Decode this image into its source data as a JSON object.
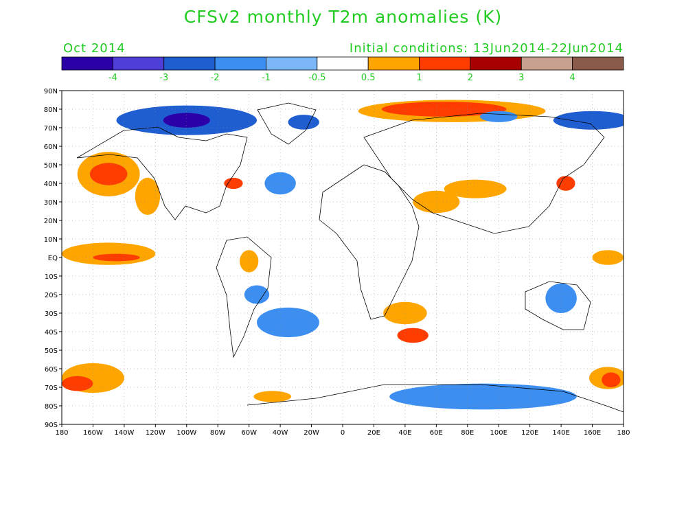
{
  "title": "CFSv2 monthly T2m anomalies (K)",
  "subtitle_left": "Oct 2014",
  "subtitle_right": "Initial conditions: 13Jun2014-22Jun2014",
  "text_color": "#22cc22",
  "colorbar": {
    "colors": [
      "#2b00a8",
      "#4f3fd8",
      "#1f5ed0",
      "#3c8ff0",
      "#7cb8f8",
      "#ffffff",
      "#ffa500",
      "#ff3c00",
      "#a80000",
      "#c8a090",
      "#8a5a4a"
    ],
    "labels": [
      "-4",
      "-3",
      "-2",
      "-1",
      "-0.5",
      "0.5",
      "1",
      "2",
      "3",
      "4"
    ]
  },
  "lat_ticks": [
    "90N",
    "80N",
    "70N",
    "60N",
    "50N",
    "40N",
    "30N",
    "20N",
    "10N",
    "EQ",
    "10S",
    "20S",
    "30S",
    "40S",
    "50S",
    "60S",
    "70S",
    "80S",
    "90S"
  ],
  "lon_ticks": [
    "180",
    "160W",
    "140W",
    "120W",
    "100W",
    "80W",
    "60W",
    "40W",
    "20W",
    "0",
    "20E",
    "40E",
    "60E",
    "80E",
    "100E",
    "120E",
    "140E",
    "160E",
    "180"
  ],
  "anomaly_regions": [
    {
      "name": "arctic-siberia-warm",
      "lon": 70,
      "lat": 79,
      "rx": 60,
      "ry": 6,
      "level": 1
    },
    {
      "name": "arctic-siberia-core",
      "lon": 65,
      "lat": 80,
      "rx": 40,
      "ry": 4,
      "level": 2
    },
    {
      "name": "canada-arctic-cold",
      "lon": -100,
      "lat": 74,
      "rx": 45,
      "ry": 8,
      "level": -2
    },
    {
      "name": "canada-arctic-core",
      "lon": -100,
      "lat": 74,
      "rx": 15,
      "ry": 4,
      "level": -4
    },
    {
      "name": "greenland-cold",
      "lon": -25,
      "lat": 73,
      "rx": 10,
      "ry": 4,
      "level": -2
    },
    {
      "name": "east-siberian-cold",
      "lon": 160,
      "lat": 74,
      "rx": 25,
      "ry": 5,
      "level": -2
    },
    {
      "name": "siberia-cold",
      "lon": 100,
      "lat": 76,
      "rx": 12,
      "ry": 3,
      "level": -1
    },
    {
      "name": "ne-pacific-warm",
      "lon": -150,
      "lat": 45,
      "rx": 20,
      "ry": 12,
      "level": 1
    },
    {
      "name": "ne-pacific-core",
      "lon": -150,
      "lat": 45,
      "rx": 12,
      "ry": 6,
      "level": 2
    },
    {
      "name": "california-warm",
      "lon": -125,
      "lat": 33,
      "rx": 8,
      "ry": 10,
      "level": 1
    },
    {
      "name": "eq-pacific-warm",
      "lon": -150,
      "lat": 2,
      "rx": 30,
      "ry": 6,
      "level": 1
    },
    {
      "name": "eq-pacific-core",
      "lon": -145,
      "lat": 0,
      "rx": 15,
      "ry": 2,
      "level": 2
    },
    {
      "name": "north-atlantic-cold",
      "lon": -40,
      "lat": 40,
      "rx": 10,
      "ry": 6,
      "level": -1
    },
    {
      "name": "us-east-warm",
      "lon": -70,
      "lat": 40,
      "rx": 6,
      "ry": 3,
      "level": 2
    },
    {
      "name": "south-america-warm",
      "lon": -60,
      "lat": -2,
      "rx": 6,
      "ry": 6,
      "level": 1
    },
    {
      "name": "south-atlantic-cold",
      "lon": -35,
      "lat": -35,
      "rx": 20,
      "ry": 8,
      "level": -1
    },
    {
      "name": "brazil-cold",
      "lon": -55,
      "lat": -20,
      "rx": 8,
      "ry": 5,
      "level": -1
    },
    {
      "name": "southern-africa-warm",
      "lon": 45,
      "lat": -42,
      "rx": 10,
      "ry": 4,
      "level": 2
    },
    {
      "name": "indian-ocean-warm",
      "lon": 40,
      "lat": -30,
      "rx": 14,
      "ry": 6,
      "level": 1
    },
    {
      "name": "middle-east-warm",
      "lon": 60,
      "lat": 30,
      "rx": 15,
      "ry": 6,
      "level": 1
    },
    {
      "name": "asia-warm",
      "lon": 85,
      "lat": 37,
      "rx": 20,
      "ry": 5,
      "level": 1
    },
    {
      "name": "japan-warm",
      "lon": 143,
      "lat": 40,
      "rx": 6,
      "ry": 4,
      "level": 2
    },
    {
      "name": "east-indian-ocean-warm",
      "lon": 170,
      "lat": 0,
      "rx": 10,
      "ry": 4,
      "level": 1
    },
    {
      "name": "australia-cold",
      "lon": 140,
      "lat": -22,
      "rx": 10,
      "ry": 8,
      "level": -1
    },
    {
      "name": "southern-ocean-warm-west",
      "lon": -160,
      "lat": -65,
      "rx": 20,
      "ry": 8,
      "level": 1
    },
    {
      "name": "southern-ocean-core-west",
      "lon": -170,
      "lat": -68,
      "rx": 10,
      "ry": 4,
      "level": 2
    },
    {
      "name": "southern-ocean-warm-east",
      "lon": 170,
      "lat": -65,
      "rx": 12,
      "ry": 6,
      "level": 1
    },
    {
      "name": "southern-ocean-core-east",
      "lon": 172,
      "lat": -66,
      "rx": 6,
      "ry": 4,
      "level": 2
    },
    {
      "name": "antarctica-cold",
      "lon": 90,
      "lat": -75,
      "rx": 60,
      "ry": 7,
      "level": -1
    },
    {
      "name": "weddell-warm",
      "lon": -45,
      "lat": -75,
      "rx": 12,
      "ry": 3,
      "level": 1
    }
  ]
}
